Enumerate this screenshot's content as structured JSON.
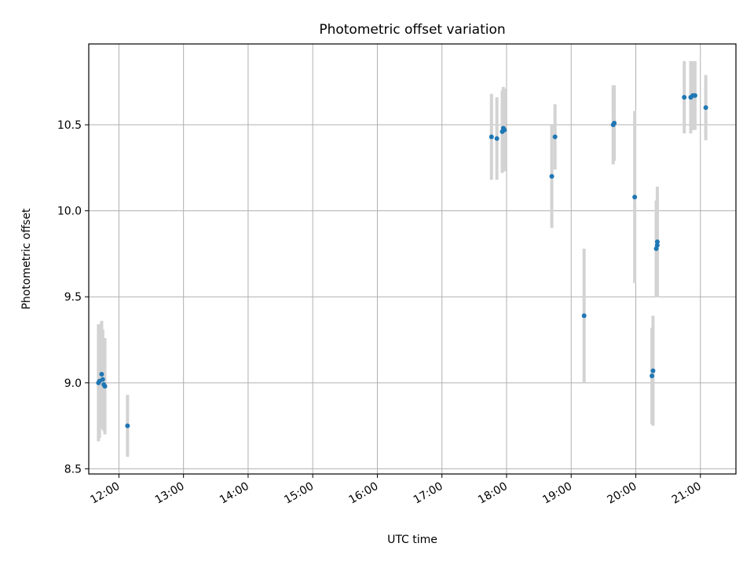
{
  "chart_data": {
    "type": "scatter",
    "title": "Photometric offset variation",
    "xlabel": "UTC time",
    "ylabel": "Photometric offset",
    "grid": true,
    "xlim": [
      "11:32",
      "21:33"
    ],
    "ylim": [
      8.47,
      10.97
    ],
    "x_ticks": [
      "12:00",
      "13:00",
      "14:00",
      "15:00",
      "16:00",
      "17:00",
      "18:00",
      "19:00",
      "20:00",
      "21:00"
    ],
    "y_ticks": [
      "8.5",
      "9.0",
      "9.5",
      "10.0",
      "10.5"
    ],
    "colors": {
      "point": "#1f77b4",
      "error_bar": "#d3d3d3",
      "grid": "#b0b0b0"
    },
    "points": [
      {
        "t": "11:41",
        "y": 9.0,
        "err": 0.34
      },
      {
        "t": "11:42",
        "y": 9.01,
        "err": 0.33
      },
      {
        "t": "11:44",
        "y": 9.05,
        "err": 0.31
      },
      {
        "t": "11:45",
        "y": 9.02,
        "err": 0.29
      },
      {
        "t": "11:46",
        "y": 8.99,
        "err": 0.27
      },
      {
        "t": "11:47",
        "y": 8.98,
        "err": 0.28
      },
      {
        "t": "12:08",
        "y": 8.75,
        "err": 0.18
      },
      {
        "t": "17:46",
        "y": 10.43,
        "err": 0.25
      },
      {
        "t": "17:51",
        "y": 10.42,
        "err": 0.24
      },
      {
        "t": "17:56",
        "y": 10.46,
        "err": 0.24
      },
      {
        "t": "17:57",
        "y": 10.48,
        "err": 0.24
      },
      {
        "t": "17:58",
        "y": 10.47,
        "err": 0.24
      },
      {
        "t": "18:42",
        "y": 10.2,
        "err": 0.3
      },
      {
        "t": "18:45",
        "y": 10.43,
        "err": 0.19
      },
      {
        "t": "19:12",
        "y": 9.39,
        "err": 0.39
      },
      {
        "t": "19:39",
        "y": 10.5,
        "err": 0.23
      },
      {
        "t": "19:40",
        "y": 10.51,
        "err": 0.22
      },
      {
        "t": "19:59",
        "y": 10.08,
        "err": 0.5
      },
      {
        "t": "20:15",
        "y": 9.04,
        "err": 0.28
      },
      {
        "t": "20:16",
        "y": 9.07,
        "err": 0.32
      },
      {
        "t": "20:19",
        "y": 9.78,
        "err": 0.28
      },
      {
        "t": "20:20",
        "y": 9.8,
        "err": 0.3
      },
      {
        "t": "20:20",
        "y": 9.82,
        "err": 0.32
      },
      {
        "t": "20:45",
        "y": 10.66,
        "err": 0.21
      },
      {
        "t": "20:51",
        "y": 10.66,
        "err": 0.21
      },
      {
        "t": "20:53",
        "y": 10.67,
        "err": 0.2
      },
      {
        "t": "20:55",
        "y": 10.67,
        "err": 0.2
      },
      {
        "t": "21:05",
        "y": 10.6,
        "err": 0.19
      }
    ]
  }
}
